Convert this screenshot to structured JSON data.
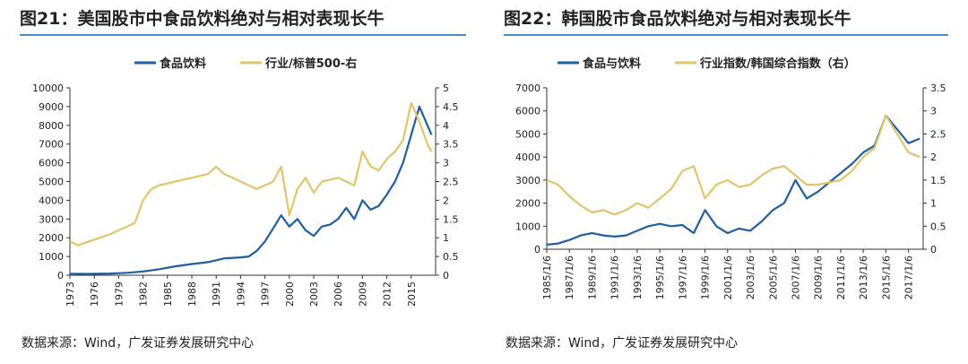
{
  "colors": {
    "series1": "#1f5fa0",
    "series2": "#e2c56a",
    "rule": "#4a8ec9"
  },
  "left": {
    "title": "图21：美国股市中食品饮料绝对与相对表现长牛",
    "source": "数据来源：Wind，广发证券发展研究中心",
    "chart_data": {
      "type": "line",
      "title": "图21：美国股市中食品饮料绝对与相对表现长牛",
      "xlabel": "",
      "ylabel": "",
      "y2label": "",
      "x_ticks": [
        "1973",
        "1976",
        "1979",
        "1982",
        "1985",
        "1988",
        "1991",
        "1994",
        "1997",
        "2000",
        "2003",
        "2006",
        "2009",
        "2012",
        "2015"
      ],
      "y_ticks": [
        "0",
        "1000",
        "2000",
        "3000",
        "4000",
        "5000",
        "6000",
        "7000",
        "8000",
        "9000",
        "10000"
      ],
      "y2_ticks": [
        "0",
        "0.5",
        "1",
        "1.5",
        "2",
        "2.5",
        "3",
        "3.5",
        "4",
        "4.5",
        "5"
      ],
      "xlim": [
        1973,
        2018
      ],
      "ylim": [
        0,
        10000
      ],
      "y2lim": [
        0,
        5
      ],
      "legend_position": "top-center",
      "series": [
        {
          "name": "食品饮料",
          "axis": "left",
          "x": [
            1973,
            1975,
            1978,
            1980,
            1982,
            1984,
            1986,
            1988,
            1990,
            1992,
            1994,
            1995,
            1996,
            1997,
            1998,
            1999,
            2000,
            2001,
            2002,
            2003,
            2004,
            2005,
            2006,
            2007,
            2008,
            2009,
            2010,
            2011,
            2012,
            2013,
            2014,
            2015,
            2016,
            2017,
            2017.5
          ],
          "values": [
            80,
            70,
            90,
            130,
            200,
            320,
            480,
            600,
            700,
            900,
            950,
            1000,
            1300,
            1800,
            2500,
            3200,
            2600,
            3000,
            2400,
            2100,
            2600,
            2700,
            3000,
            3600,
            3000,
            4000,
            3500,
            3700,
            4300,
            5000,
            6000,
            7500,
            9000,
            8000,
            7500
          ]
        },
        {
          "name": "行业/标普500-右",
          "axis": "right",
          "x": [
            1973,
            1974,
            1976,
            1978,
            1980,
            1981,
            1982,
            1983,
            1984,
            1986,
            1988,
            1990,
            1991,
            1992,
            1994,
            1996,
            1998,
            1999,
            2000,
            2001,
            2002,
            2003,
            2004,
            2006,
            2008,
            2009,
            2010,
            2011,
            2012,
            2013,
            2014,
            2015,
            2016,
            2017,
            2017.5
          ],
          "values": [
            0.9,
            0.8,
            0.95,
            1.1,
            1.3,
            1.4,
            2.0,
            2.3,
            2.4,
            2.5,
            2.6,
            2.7,
            2.9,
            2.7,
            2.5,
            2.3,
            2.5,
            2.9,
            1.6,
            2.3,
            2.6,
            2.2,
            2.5,
            2.6,
            2.4,
            3.3,
            2.9,
            2.8,
            3.1,
            3.3,
            3.6,
            4.6,
            4.1,
            3.5,
            3.3
          ]
        }
      ]
    }
  },
  "right": {
    "title": "图22：韩国股市食品饮料绝对与相对表现长牛",
    "source": "数据来源：Wind，广发证券发展研究中心",
    "chart_data": {
      "type": "line",
      "title": "图22：韩国股市食品饮料绝对与相对表现长牛",
      "xlabel": "",
      "ylabel": "",
      "y2label": "",
      "x_ticks": [
        "1985/1/6",
        "1987/1/6",
        "1989/1/6",
        "1991/1/6",
        "1993/1/6",
        "1995/1/6",
        "1997/1/6",
        "1999/1/6",
        "2001/1/6",
        "2003/1/6",
        "2005/1/6",
        "2007/1/6",
        "2009/1/6",
        "2011/1/6",
        "2013/1/6",
        "2015/1/6",
        "2017/1/6"
      ],
      "y_ticks": [
        "0",
        "1000",
        "2000",
        "3000",
        "4000",
        "5000",
        "6000",
        "7000"
      ],
      "y2_ticks": [
        "0",
        "0.5",
        "1",
        "1.5",
        "2",
        "2.5",
        "3",
        "3.5"
      ],
      "xlim": [
        1985,
        2018.3
      ],
      "ylim": [
        0,
        7000
      ],
      "y2lim": [
        0,
        3.5
      ],
      "legend_position": "top-center",
      "series": [
        {
          "name": "食品与饮料",
          "axis": "left",
          "x": [
            1985,
            1986,
            1987,
            1988,
            1989,
            1990,
            1991,
            1992,
            1993,
            1994,
            1995,
            1996,
            1997,
            1998,
            1999,
            2000,
            2001,
            2002,
            2003,
            2004,
            2005,
            2006,
            2007,
            2008,
            2009,
            2010,
            2011,
            2012,
            2013,
            2014,
            2015,
            2016,
            2017,
            2018
          ],
          "values": [
            200,
            250,
            400,
            600,
            700,
            600,
            550,
            600,
            800,
            1000,
            1100,
            1000,
            1050,
            700,
            1700,
            1000,
            700,
            900,
            800,
            1200,
            1700,
            2000,
            3000,
            2200,
            2500,
            2900,
            3300,
            3700,
            4200,
            4500,
            5800,
            5200,
            4600,
            4800
          ]
        },
        {
          "name": "行业指数/韩国综合指数（右）",
          "axis": "right",
          "x": [
            1985,
            1986,
            1987,
            1988,
            1989,
            1990,
            1991,
            1992,
            1993,
            1994,
            1995,
            1996,
            1997,
            1998,
            1999,
            2000,
            2001,
            2002,
            2003,
            2004,
            2005,
            2006,
            2007,
            2008,
            2009,
            2010,
            2011,
            2012,
            2013,
            2014,
            2015,
            2016,
            2017,
            2018
          ],
          "values": [
            1.5,
            1.4,
            1.15,
            0.95,
            0.8,
            0.85,
            0.75,
            0.85,
            1.0,
            0.9,
            1.1,
            1.3,
            1.7,
            1.8,
            1.1,
            1.4,
            1.5,
            1.35,
            1.4,
            1.6,
            1.75,
            1.8,
            1.6,
            1.4,
            1.4,
            1.45,
            1.5,
            1.7,
            2.0,
            2.2,
            2.9,
            2.5,
            2.1,
            2.0
          ]
        }
      ]
    }
  }
}
